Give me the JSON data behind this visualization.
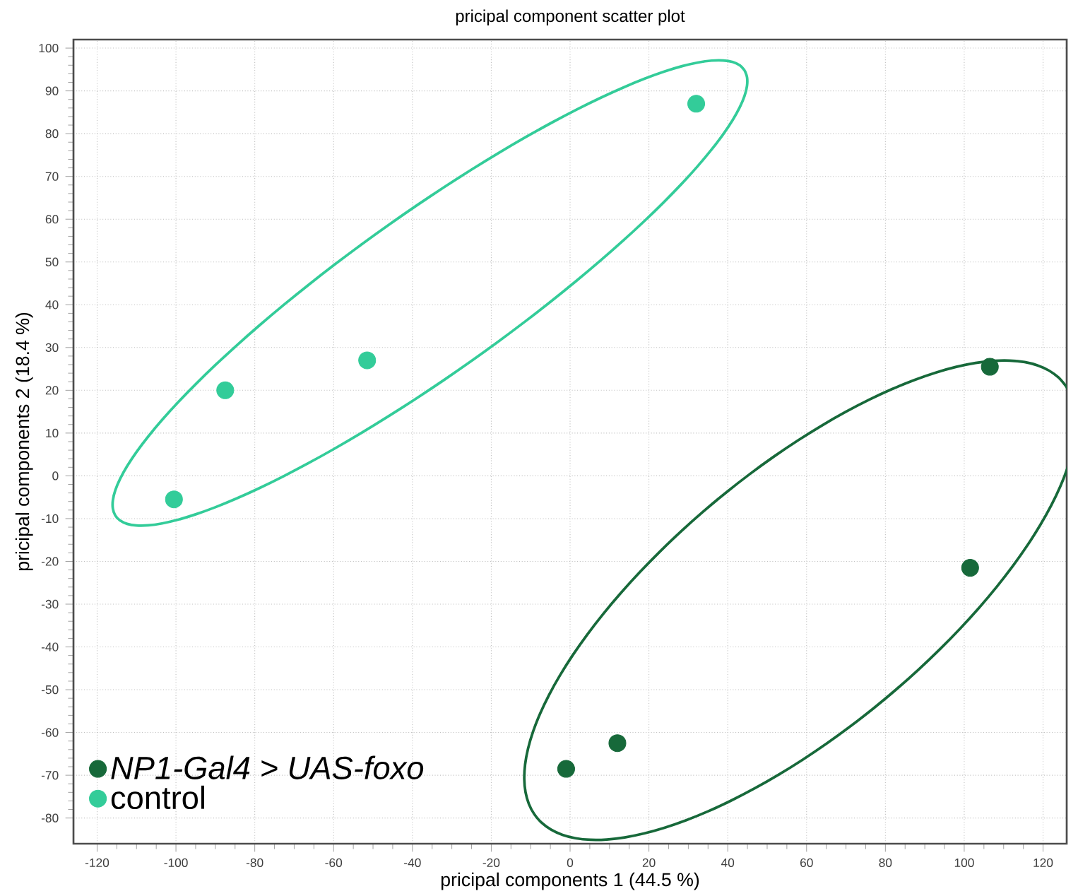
{
  "chart_data": {
    "type": "scatter",
    "title": "pricipal component scatter plot",
    "xlabel": "pricipal components 1 (44.5 %)",
    "ylabel": "pricipal components 2 (18.4 %)",
    "series": [
      {
        "name": "*NP1-Gal4 > UAS-foxo*",
        "color": "#17693a",
        "x": [
          -1,
          12,
          101.5,
          106.5
        ],
        "values": [
          -68.5,
          -62.5,
          -21.5,
          25.5
        ]
      },
      {
        "name": "control",
        "color": "#33cc99",
        "x": [
          -100.5,
          -87.5,
          -51.5,
          32
        ],
        "values": [
          -5.5,
          20,
          27,
          87
        ]
      }
    ],
    "xlim": [
      -126,
      126
    ],
    "ylim": [
      -86,
      102
    ],
    "xticks": [
      -120,
      -100,
      -80,
      -60,
      -40,
      -20,
      0,
      20,
      40,
      60,
      80,
      100,
      120
    ],
    "yticks": [
      -80,
      -70,
      -60,
      -50,
      -40,
      -30,
      -20,
      -10,
      0,
      10,
      20,
      30,
      40,
      50,
      60,
      70,
      80,
      90,
      100
    ],
    "grid": true,
    "legend": "bottom left",
    "marker": "circle"
  }
}
